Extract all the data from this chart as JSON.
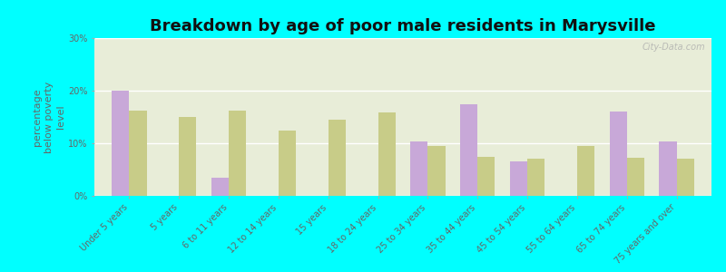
{
  "title": "Breakdown by age of poor male residents in Marysville",
  "ylabel": "percentage\nbelow poverty\nlevel",
  "categories": [
    "Under 5 years",
    "5 years",
    "6 to 11 years",
    "12 to 14 years",
    "15 years",
    "18 to 24 years",
    "25 to 34 years",
    "35 to 44 years",
    "45 to 54 years",
    "55 to 64 years",
    "65 to 74 years",
    "75 years and over"
  ],
  "marysville": [
    20.0,
    0.0,
    3.5,
    0.0,
    0.0,
    0.0,
    10.3,
    17.5,
    6.5,
    0.0,
    16.0,
    10.3
  ],
  "pennsylvania": [
    16.2,
    15.0,
    16.2,
    12.5,
    14.5,
    15.8,
    9.5,
    7.5,
    7.0,
    9.5,
    7.2,
    7.0
  ],
  "marysville_color": "#c8a8d8",
  "pennsylvania_color": "#c8cc88",
  "background_color": "#00ffff",
  "plot_bg_color": "#e8edd8",
  "ylim": [
    0,
    30
  ],
  "yticks": [
    0,
    10,
    20,
    30
  ],
  "ytick_labels": [
    "0%",
    "10%",
    "20%",
    "30%"
  ],
  "title_fontsize": 13,
  "axis_label_fontsize": 8,
  "tick_label_fontsize": 7,
  "legend_fontsize": 9,
  "watermark": "City-Data.com"
}
